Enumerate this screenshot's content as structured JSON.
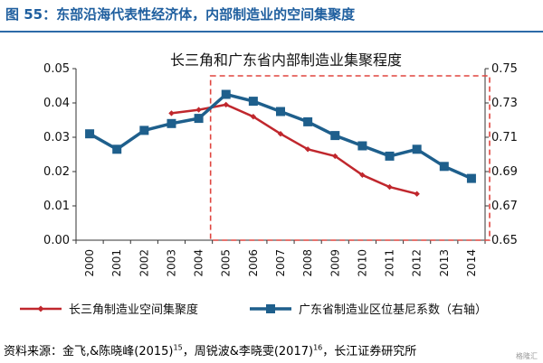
{
  "figure": {
    "title": "图 55：东部沿海代表性经济体，内部制造业的空间集聚度",
    "source_parts": [
      {
        "text": "资料来源：金飞,&陈晓峰(2015)",
        "sup": "15"
      },
      {
        "text": "，周锐波&李晓雯(2017)",
        "sup": "16"
      },
      {
        "text": "，长江证券研究所",
        "sup": ""
      }
    ],
    "watermark": "格隆汇"
  },
  "chart_data": {
    "type": "line",
    "title": "长三角和广东省内部制造业集聚程度",
    "categories": [
      "2000",
      "2001",
      "2002",
      "2003",
      "2004",
      "2005",
      "2006",
      "2007",
      "2008",
      "2009",
      "2010",
      "2011",
      "2012",
      "2013",
      "2014"
    ],
    "series": [
      {
        "name": "长三角制造业空间集聚度",
        "axis": "left",
        "color": "#c0272d",
        "marker": "diamond",
        "values": [
          null,
          null,
          null,
          0.037,
          0.038,
          0.0395,
          0.036,
          0.031,
          0.0265,
          0.0245,
          0.019,
          0.0155,
          0.0135,
          null,
          null
        ]
      },
      {
        "name": "广东省制造业区位基尼系数（右轴）",
        "axis": "right",
        "color": "#1e5f8c",
        "marker": "square",
        "values": [
          0.712,
          0.703,
          0.714,
          0.718,
          0.721,
          0.735,
          0.731,
          0.725,
          0.719,
          0.711,
          0.705,
          0.699,
          0.703,
          0.693,
          0.686
        ]
      }
    ],
    "y_left": {
      "min": 0,
      "max": 0.05,
      "ticks": [
        "0.00",
        "0.01",
        "0.02",
        "0.03",
        "0.04",
        "0.05"
      ]
    },
    "y_right": {
      "min": 0.65,
      "max": 0.75,
      "ticks": [
        "0.65",
        "0.67",
        "0.69",
        "0.71",
        "0.73",
        "0.75"
      ]
    },
    "highlight": {
      "from": "2005",
      "to": "2014",
      "color": "#e0453f"
    },
    "grid": false,
    "legend": "bottom"
  }
}
